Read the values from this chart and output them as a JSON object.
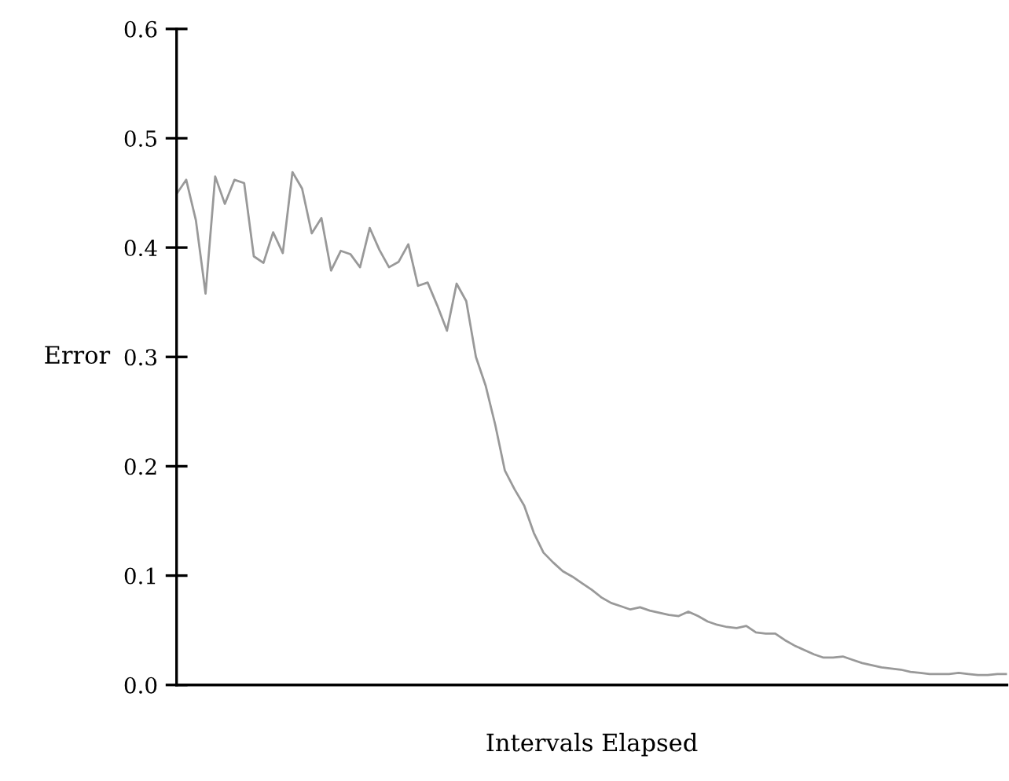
{
  "chart_data": {
    "type": "line",
    "xlabel": "Intervals Elapsed",
    "ylabel": "Error",
    "categories": [
      null,
      null,
      null,
      null,
      null,
      null,
      null,
      null,
      null,
      null,
      null,
      null,
      null,
      null,
      null,
      null,
      null,
      null,
      null,
      null,
      null,
      null,
      null,
      null,
      null,
      null,
      null,
      null,
      null,
      null,
      null,
      null,
      null,
      null,
      null,
      null,
      null,
      null,
      null,
      null,
      null,
      null,
      null,
      null,
      null,
      null,
      null,
      null,
      null,
      null,
      null,
      null,
      null,
      null,
      null,
      null,
      null,
      null,
      null,
      null,
      null,
      null,
      null,
      null,
      null,
      null,
      null,
      null,
      null,
      null,
      null,
      null,
      null,
      null,
      null,
      null,
      null,
      null,
      null,
      null,
      null,
      null,
      null,
      null,
      null,
      null,
      null
    ],
    "series": [
      {
        "color": "#999999",
        "values": [
          0.449,
          0.462,
          0.425,
          0.358,
          0.465,
          0.44,
          0.462,
          0.459,
          0.392,
          0.386,
          0.414,
          0.395,
          0.469,
          0.454,
          0.413,
          0.427,
          0.379,
          0.397,
          0.394,
          0.382,
          0.418,
          0.398,
          0.382,
          0.387,
          0.403,
          0.365,
          0.368,
          0.347,
          0.324,
          0.367,
          0.351,
          0.3,
          0.274,
          0.238,
          0.196,
          0.179,
          0.164,
          0.139,
          0.121,
          0.112,
          0.104,
          0.099,
          0.093,
          0.087,
          0.08,
          0.075,
          0.072,
          0.069,
          0.071,
          0.068,
          0.066,
          0.064,
          0.063,
          0.067,
          0.063,
          0.058,
          0.055,
          0.053,
          0.052,
          0.054,
          0.048,
          0.047,
          0.047,
          0.041,
          0.036,
          0.032,
          0.028,
          0.025,
          0.025,
          0.026,
          0.023,
          0.02,
          0.018,
          0.016,
          0.015,
          0.014,
          0.012,
          0.011,
          0.01,
          0.01,
          0.01,
          0.011,
          0.01,
          0.009,
          0.009,
          0.01,
          0.01
        ]
      }
    ],
    "ylim": [
      0,
      0.6
    ],
    "yticks": [
      {
        "value": 0,
        "label": "0.0"
      },
      0.1,
      0.2,
      0.3,
      0.4,
      0.5,
      0.6
    ],
    "tick_labels": "y",
    "grid": false,
    "legend": false,
    "marker": "none",
    "line_style": "solid"
  }
}
